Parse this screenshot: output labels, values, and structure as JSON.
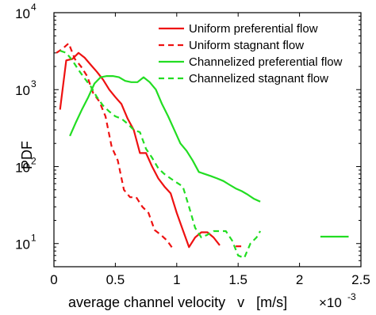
{
  "chart_data": {
    "type": "line",
    "title": "",
    "xlabel": "average channel velocity   v   [m/s]",
    "ylabel": "PDF",
    "x_exponent_base": "×10",
    "x_exponent_power": "-3",
    "xlim": [
      0,
      0.0025
    ],
    "ylim": [
      5,
      10000
    ],
    "yscale": "log",
    "grid": false,
    "legend_position": "top-right",
    "x_ticks": [
      {
        "value": 0,
        "label": "0"
      },
      {
        "value": 0.0005,
        "label": "0.5"
      },
      {
        "value": 0.001,
        "label": "1"
      },
      {
        "value": 0.0015,
        "label": "1.5"
      },
      {
        "value": 0.002,
        "label": "2"
      },
      {
        "value": 0.0025,
        "label": "2.5"
      }
    ],
    "y_ticks": [
      {
        "value": 10,
        "base": "10",
        "exp": "1"
      },
      {
        "value": 100,
        "base": "10",
        "exp": "2"
      },
      {
        "value": 1000,
        "base": "10",
        "exp": "3"
      },
      {
        "value": 10000,
        "base": "10",
        "exp": "4"
      }
    ],
    "series": [
      {
        "name": "Uniform preferential flow",
        "color": "#ee1111",
        "dash": "solid",
        "points": [
          [
            5e-05,
            550
          ],
          [
            0.0001,
            2400
          ],
          [
            0.00015,
            2500
          ],
          [
            0.0002,
            3000
          ],
          [
            0.00025,
            2600
          ],
          [
            0.0003,
            2100
          ],
          [
            0.00035,
            1700
          ],
          [
            0.0004,
            1350
          ],
          [
            0.00045,
            1000
          ],
          [
            0.0005,
            800
          ],
          [
            0.00055,
            650
          ],
          [
            0.0006,
            420
          ],
          [
            0.00065,
            300
          ],
          [
            0.0007,
            150
          ],
          [
            0.00075,
            150
          ],
          [
            0.0008,
            100
          ],
          [
            0.00085,
            70
          ],
          [
            0.0009,
            55
          ],
          [
            0.00095,
            45
          ],
          [
            0.001,
            25
          ],
          [
            0.00105,
            15
          ],
          [
            0.0011,
            9
          ],
          [
            0.00115,
            12
          ],
          [
            0.0012,
            14
          ],
          [
            0.00125,
            14
          ],
          [
            0.0013,
            12
          ],
          [
            0.00135,
            9.5
          ]
        ]
      },
      {
        "name": "Uniform stagnant flow",
        "color": "#ee1111",
        "dash": "dashed",
        "points": [
          [
            2e-05,
            3000
          ],
          [
            7e-05,
            3400
          ],
          [
            0.00012,
            4000
          ],
          [
            0.00017,
            2500
          ],
          [
            0.00022,
            2000
          ],
          [
            0.00027,
            1500
          ],
          [
            0.00032,
            900
          ],
          [
            0.00037,
            700
          ],
          [
            0.00042,
            450
          ],
          [
            0.00047,
            180
          ],
          [
            0.00052,
            120
          ],
          [
            0.00057,
            50
          ],
          [
            0.00062,
            40
          ],
          [
            0.00067,
            40
          ],
          [
            0.00072,
            30
          ],
          [
            0.00077,
            25
          ],
          [
            0.00082,
            15
          ],
          [
            0.00087,
            13
          ],
          [
            0.00092,
            11
          ],
          [
            0.00097,
            8.5
          ]
        ],
        "segment2": [
          [
            0.00148,
            9.2
          ],
          [
            0.00155,
            9.2
          ]
        ]
      },
      {
        "name": "Channelized preferential flow",
        "color": "#22dd22",
        "dash": "solid",
        "points": [
          [
            0.00013,
            250
          ],
          [
            0.00018,
            380
          ],
          [
            0.00023,
            560
          ],
          [
            0.00028,
            800
          ],
          [
            0.00033,
            1200
          ],
          [
            0.00038,
            1450
          ],
          [
            0.00043,
            1500
          ],
          [
            0.00048,
            1500
          ],
          [
            0.00053,
            1450
          ],
          [
            0.00058,
            1300
          ],
          [
            0.00063,
            1250
          ],
          [
            0.00068,
            1250
          ],
          [
            0.00073,
            1450
          ],
          [
            0.00078,
            1250
          ],
          [
            0.00083,
            1000
          ],
          [
            0.00088,
            650
          ],
          [
            0.00093,
            450
          ],
          [
            0.00098,
            300
          ],
          [
            0.00103,
            200
          ],
          [
            0.00108,
            160
          ],
          [
            0.00113,
            120
          ],
          [
            0.00118,
            85
          ],
          [
            0.00123,
            80
          ],
          [
            0.00128,
            75
          ],
          [
            0.00133,
            70
          ],
          [
            0.00138,
            65
          ],
          [
            0.00143,
            58
          ],
          [
            0.00148,
            52
          ],
          [
            0.00153,
            48
          ],
          [
            0.00158,
            43
          ],
          [
            0.00163,
            38
          ],
          [
            0.00168,
            35
          ]
        ],
        "segment2": [
          [
            0.00217,
            12.3
          ],
          [
            0.0024,
            12.3
          ]
        ]
      },
      {
        "name": "Channelized stagnant flow",
        "color": "#22dd22",
        "dash": "dashed",
        "points": [
          [
            5e-05,
            3200
          ],
          [
            0.0001,
            3000
          ],
          [
            0.00015,
            2400
          ],
          [
            0.0002,
            1800
          ],
          [
            0.00025,
            1400
          ],
          [
            0.0003,
            1100
          ],
          [
            0.00035,
            800
          ],
          [
            0.0004,
            620
          ],
          [
            0.00045,
            520
          ],
          [
            0.0005,
            450
          ],
          [
            0.00055,
            420
          ],
          [
            0.0006,
            360
          ],
          [
            0.00065,
            300
          ],
          [
            0.0007,
            280
          ],
          [
            0.00075,
            170
          ],
          [
            0.0008,
            130
          ],
          [
            0.00085,
            95
          ],
          [
            0.0009,
            80
          ],
          [
            0.00095,
            70
          ],
          [
            0.001,
            62
          ],
          [
            0.00105,
            55
          ],
          [
            0.0011,
            30
          ],
          [
            0.00115,
            16
          ],
          [
            0.0012,
            12
          ],
          [
            0.00125,
            13
          ],
          [
            0.0013,
            14.5
          ],
          [
            0.00135,
            14.5
          ],
          [
            0.0014,
            14.5
          ],
          [
            0.00145,
            11
          ],
          [
            0.0015,
            7
          ],
          [
            0.00155,
            6.5
          ],
          [
            0.0016,
            10
          ],
          [
            0.00165,
            12
          ],
          [
            0.00168,
            14.5
          ]
        ]
      }
    ]
  }
}
